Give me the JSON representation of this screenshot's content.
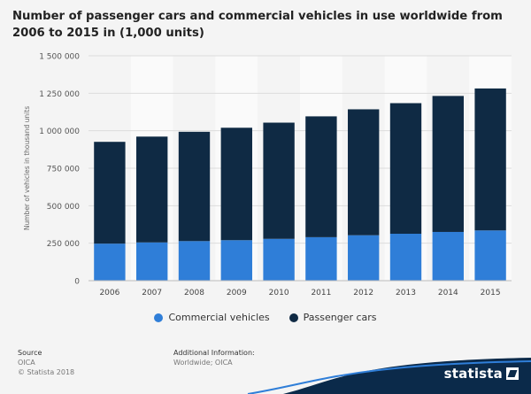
{
  "title": "Number of passenger cars and commercial vehicles in use worldwide from 2006 to 2015 in (1,000 units)",
  "chart_data": {
    "type": "bar",
    "stacked": true,
    "categories": [
      "2006",
      "2007",
      "2008",
      "2009",
      "2010",
      "2011",
      "2012",
      "2013",
      "2014",
      "2015"
    ],
    "series": [
      {
        "name": "Commercial vehicles",
        "color": "#2f7ed8",
        "values": [
          247000,
          255000,
          264000,
          270000,
          279000,
          290000,
          303000,
          313000,
          325000,
          335000
        ]
      },
      {
        "name": "Passenger cars",
        "color": "#0f2a44",
        "values": [
          679000,
          706000,
          729000,
          750000,
          775000,
          806000,
          840000,
          871000,
          907000,
          947000
        ]
      }
    ],
    "ylabel": "Number of vehicles in thousand units",
    "ylim": [
      0,
      1500000
    ],
    "yticks": [
      "0",
      "250 000",
      "500 000",
      "750 000",
      "1 000 000",
      "1 250 000",
      "1 500 000"
    ],
    "ytick_values": [
      0,
      250000,
      500000,
      750000,
      1000000,
      1250000,
      1500000
    ],
    "grid": true,
    "legend_position": "bottom"
  },
  "footer": {
    "source_label": "Source",
    "source_value": "OICA",
    "copyright": "© Statista 2018",
    "info_label": "Additional Information:",
    "info_value": "Worldwide; OICA"
  },
  "brand": "statista"
}
